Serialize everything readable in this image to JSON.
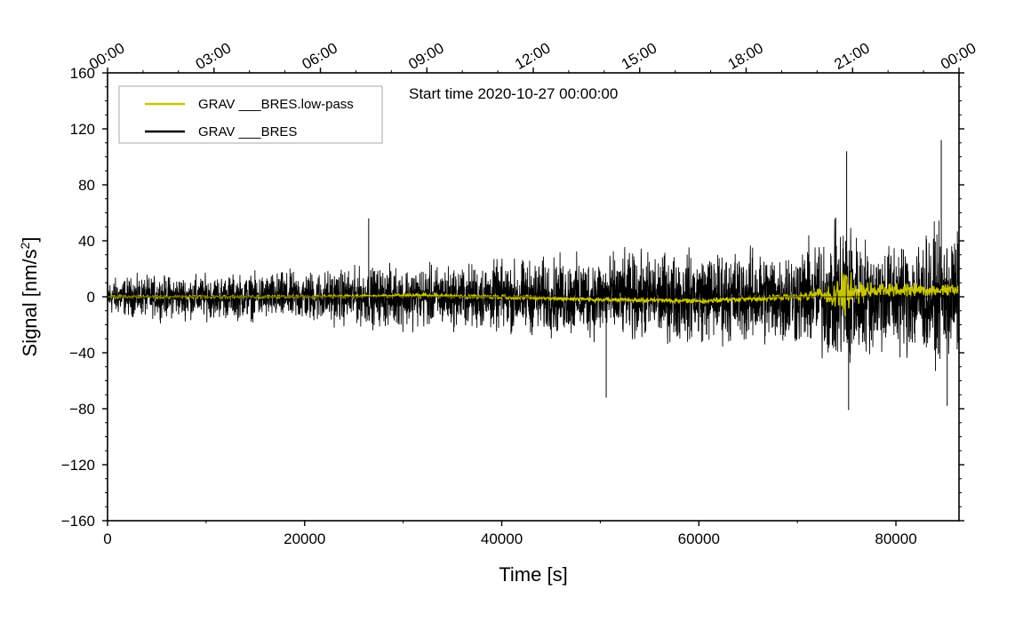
{
  "chart_data": {
    "type": "line",
    "title": "",
    "annotation": "Start time 2020-10-27 00:00:00",
    "xlabel": "Time [s]",
    "ylabel_prefix": "Signal [nm/s",
    "ylabel_sup": "2",
    "ylabel_suffix": "]",
    "xlim": [
      0,
      86400
    ],
    "ylim": [
      -160,
      160
    ],
    "x_ticks": [
      0,
      20000,
      40000,
      60000,
      80000
    ],
    "y_ticks": [
      -160,
      -120,
      -80,
      -40,
      0,
      40,
      80,
      120,
      160
    ],
    "y_tick_labels": [
      "−160",
      "−120",
      "−80",
      "−40",
      "0",
      "40",
      "80",
      "120",
      "160"
    ],
    "top_axis_labels": [
      "00:00",
      "03:00",
      "06:00",
      "09:00",
      "12:00",
      "15:00",
      "18:00",
      "21:00",
      "00:00"
    ],
    "top_axis_seconds": [
      0,
      10800,
      21600,
      32400,
      43200,
      54000,
      64800,
      75600,
      86400
    ],
    "legend_position": "top-left",
    "series": [
      {
        "name": "GRAV ___BRES",
        "color": "#000000",
        "envelope_x": [
          0,
          5000,
          10000,
          15000,
          20000,
          25000,
          30000,
          35000,
          40000,
          45000,
          50000,
          55000,
          60000,
          65000,
          70000,
          72000,
          74000,
          75000,
          76000,
          78000,
          80000,
          83000,
          86400
        ],
        "envelope_amplitude": [
          18,
          20,
          21,
          22,
          25,
          27,
          30,
          30,
          34,
          37,
          40,
          42,
          43,
          45,
          48,
          55,
          65,
          85,
          60,
          52,
          55,
          60,
          62
        ],
        "peak_values": [
          {
            "x": 26500,
            "y": 56
          },
          {
            "x": 50600,
            "y": -72
          },
          {
            "x": 75000,
            "y": 104
          },
          {
            "x": 75200,
            "y": -81
          },
          {
            "x": 84600,
            "y": 112
          },
          {
            "x": 85200,
            "y": -78
          }
        ]
      },
      {
        "name": "GRAV ___BRES.low-pass",
        "color": "#c8c400",
        "envelope_x": [
          0,
          20000,
          40000,
          60000,
          70000,
          72000,
          74000,
          75000,
          76000,
          78000,
          80000,
          86400
        ],
        "envelope_amplitude": [
          1,
          1,
          2,
          2,
          3,
          5,
          12,
          25,
          10,
          6,
          6,
          5
        ],
        "baseline_x": [
          0,
          20000,
          30000,
          40000,
          50000,
          60000,
          70000,
          78000,
          86400
        ],
        "baseline_y": [
          0,
          0,
          1,
          0,
          -2,
          -3,
          0,
          5,
          5
        ]
      }
    ],
    "legend": [
      {
        "label": "GRAV ___BRES.low-pass",
        "color": "#c8c400"
      },
      {
        "label": "GRAV ___BRES",
        "color": "#000000"
      }
    ]
  }
}
